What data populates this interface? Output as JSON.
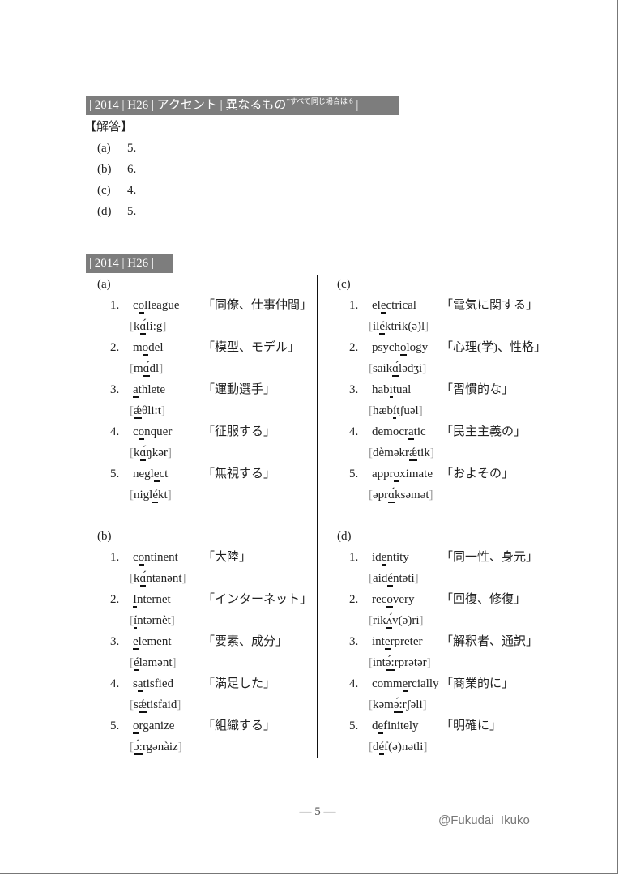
{
  "header": {
    "bar1": {
      "text": "| 2014 | H26 | アクセント | 異なるもの",
      "note": "*すべて同じ場合は 6",
      "end": " |"
    },
    "answer_heading": "【解答】",
    "answers": [
      {
        "label": "(a)",
        "value": "5."
      },
      {
        "label": "(b)",
        "value": "6."
      },
      {
        "label": "(c)",
        "value": "4."
      },
      {
        "label": "(d)",
        "value": "5."
      }
    ],
    "bar2": "| 2014 | H26 |"
  },
  "groups": [
    {
      "label": "(a)",
      "items": [
        {
          "num": "1.",
          "word": [
            "c",
            "o",
            "lleague"
          ],
          "meaning": "「同僚、仕事仲間」",
          "pron": [
            "k",
            "ɑ́",
            "li:g"
          ]
        },
        {
          "num": "2.",
          "word": [
            "m",
            "o",
            "del"
          ],
          "meaning": "「模型、モデル」",
          "pron": [
            "m",
            "ɑ́",
            "dl"
          ]
        },
        {
          "num": "3.",
          "word": [
            "",
            "a",
            "thlete"
          ],
          "meaning": "「運動選手」",
          "pron": [
            "",
            "ǽ",
            "θli:t"
          ]
        },
        {
          "num": "4.",
          "word": [
            "c",
            "o",
            "nquer"
          ],
          "meaning": "「征服する」",
          "pron": [
            "k",
            "ɑ́",
            "ŋkər"
          ]
        },
        {
          "num": "5.",
          "word": [
            "negl",
            "e",
            "ct"
          ],
          "meaning": "「無視する」",
          "pron": [
            "nigl",
            "é",
            "kt"
          ]
        }
      ]
    },
    {
      "label": "(b)",
      "items": [
        {
          "num": "1.",
          "word": [
            "c",
            "o",
            "ntinent"
          ],
          "meaning": "「大陸」",
          "pron": [
            "k",
            "ɑ́",
            "ntənənt"
          ]
        },
        {
          "num": "2.",
          "word": [
            "",
            "I",
            "nternet"
          ],
          "meaning": "「インターネット」",
          "pron": [
            "",
            "í",
            "ntərnèt"
          ]
        },
        {
          "num": "3.",
          "word": [
            "",
            "e",
            "lement"
          ],
          "meaning": "「要素、成分」",
          "pron": [
            "",
            "é",
            "ləmənt"
          ]
        },
        {
          "num": "4.",
          "word": [
            "s",
            "a",
            "tisfied"
          ],
          "meaning": "「満足した」",
          "pron": [
            "s",
            "ǽ",
            "tisfaid"
          ]
        },
        {
          "num": "5.",
          "word": [
            "",
            "o",
            "rganize"
          ],
          "meaning": "「組織する」",
          "pron": [
            "",
            "ɔ́:",
            "rgənàiz"
          ]
        }
      ]
    },
    {
      "label": "(c)",
      "items": [
        {
          "num": "1.",
          "word": [
            "el",
            "e",
            "ctrical"
          ],
          "meaning": "「電気に関する」",
          "pron": [
            "il",
            "é",
            "ktrik(ə)l"
          ]
        },
        {
          "num": "2.",
          "word": [
            "psych",
            "o",
            "logy"
          ],
          "meaning": "「心理(学)、性格」",
          "pron": [
            "saik",
            "ɑ́",
            "lədʒi"
          ]
        },
        {
          "num": "3.",
          "word": [
            "hab",
            "i",
            "tual"
          ],
          "meaning": "「習慣的な」",
          "pron": [
            "hæb",
            "í",
            "tʃuəl"
          ]
        },
        {
          "num": "4.",
          "word": [
            "democr",
            "a",
            "tic"
          ],
          "meaning": "「民主主義の」",
          "pron": [
            "dèməkr",
            "ǽ",
            "tik"
          ]
        },
        {
          "num": "5.",
          "word": [
            "appr",
            "o",
            "ximate"
          ],
          "meaning": "「およその」",
          "pron": [
            "əpr",
            "ɑ́",
            "ksəmət"
          ]
        }
      ]
    },
    {
      "label": "(d)",
      "items": [
        {
          "num": "1.",
          "word": [
            "id",
            "e",
            "ntity"
          ],
          "meaning": "「同一性、身元」",
          "pron": [
            "aid",
            "é",
            "ntəti"
          ]
        },
        {
          "num": "2.",
          "word": [
            "rec",
            "o",
            "very"
          ],
          "meaning": "「回復、修復」",
          "pron": [
            "rik",
            "ʌ́",
            "v(ə)ri"
          ]
        },
        {
          "num": "3.",
          "word": [
            "int",
            "e",
            "rpreter"
          ],
          "meaning": "「解釈者、通訳」",
          "pron": [
            "int",
            "ə́:",
            "rprətər"
          ]
        },
        {
          "num": "4.",
          "word": [
            "comm",
            "e",
            "rcially"
          ],
          "meaning": "「商業的に」",
          "pron": [
            "kəm",
            "ə́:",
            "rʃəli"
          ]
        },
        {
          "num": "5.",
          "word": [
            "d",
            "e",
            "finitely"
          ],
          "meaning": "「明確に」",
          "pron": [
            "d",
            "é",
            "f(ə)nətli"
          ]
        }
      ]
    }
  ],
  "brackets": {
    "open": "[",
    "close": "]"
  },
  "footer": {
    "page": "5",
    "dash": "—",
    "handle": "@Fukudai_Ikuko"
  }
}
